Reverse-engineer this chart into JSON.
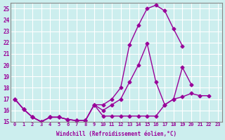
{
  "xlabel": "Windchill (Refroidissement éolien,°C)",
  "x": [
    0,
    1,
    2,
    3,
    4,
    5,
    6,
    7,
    8,
    9,
    10,
    11,
    12,
    13,
    14,
    15,
    16,
    17,
    18,
    19,
    20,
    21,
    22,
    23
  ],
  "line1": [
    17.0,
    16.1,
    15.4,
    15.0,
    15.4,
    15.4,
    15.2,
    15.1,
    15.1,
    16.5,
    15.5,
    15.5,
    15.5,
    15.5,
    15.5,
    15.5,
    15.5,
    16.5,
    17.0,
    17.2,
    17.5,
    17.3,
    17.3,
    null
  ],
  "line2": [
    17.0,
    16.1,
    15.4,
    15.0,
    15.4,
    15.4,
    15.2,
    15.1,
    15.1,
    16.5,
    16.0,
    16.5,
    17.0,
    18.5,
    20.0,
    21.9,
    18.5,
    16.5,
    17.0,
    19.8,
    18.3,
    null,
    null,
    null
  ],
  "line3": [
    17.0,
    16.1,
    15.4,
    15.0,
    15.4,
    15.4,
    15.2,
    15.1,
    15.1,
    16.5,
    16.5,
    17.0,
    18.0,
    21.8,
    23.5,
    25.0,
    25.3,
    24.8,
    23.2,
    21.7,
    null,
    null,
    null,
    null
  ],
  "line_color": "#990099",
  "bg_color": "#cceeee",
  "grid_color": "#ffffff",
  "ylim": [
    15,
    25.5
  ],
  "xlim": [
    0,
    23
  ],
  "yticks": [
    15,
    16,
    17,
    18,
    19,
    20,
    21,
    22,
    23,
    24,
    25
  ],
  "xticks": [
    0,
    1,
    2,
    3,
    4,
    5,
    6,
    7,
    8,
    9,
    10,
    11,
    12,
    13,
    14,
    15,
    16,
    17,
    18,
    19,
    20,
    21,
    22,
    23
  ]
}
